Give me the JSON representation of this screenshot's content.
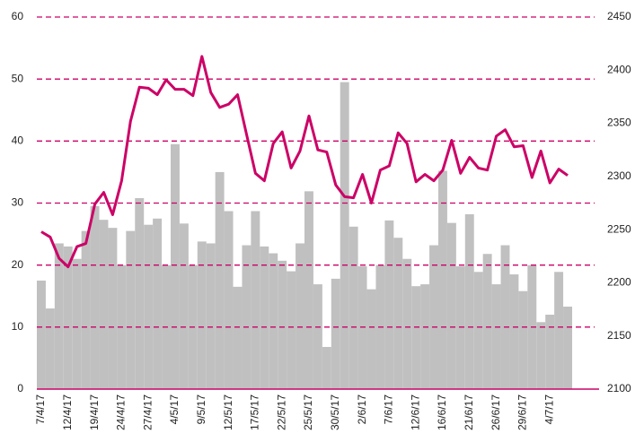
{
  "chart_data": {
    "type": "bar-line",
    "categories": [
      "7/4/17",
      null,
      null,
      "12/4/17",
      null,
      null,
      "19/4/17",
      null,
      null,
      "24/4/17",
      null,
      null,
      "27/4/17",
      null,
      null,
      "4/5/17",
      null,
      null,
      "9/5/17",
      null,
      null,
      "12/5/17",
      null,
      null,
      "17/5/17",
      null,
      null,
      "22/5/17",
      null,
      null,
      "25/5/17",
      null,
      null,
      "30/5/17",
      null,
      null,
      "2/6/17",
      null,
      null,
      "7/6/17",
      null,
      null,
      "12/6/17",
      null,
      null,
      "16/6/17",
      null,
      null,
      "21/6/17",
      null,
      null,
      "26/6/17",
      null,
      null,
      "29/6/17",
      null,
      null,
      "4/7/17",
      null,
      null
    ],
    "series": [
      {
        "type": "bar",
        "color": "#c0c0c0",
        "axis": "y",
        "values": [
          17.5,
          13,
          23.5,
          23,
          21,
          25.5,
          29.5,
          27.3,
          26,
          20,
          25.5,
          30.8,
          26.5,
          27.5,
          20,
          39.5,
          26.7,
          20,
          23.8,
          23.5,
          35,
          28.7,
          16.5,
          23.2,
          28.7,
          23,
          21.9,
          20.7,
          19,
          23.5,
          31.9,
          16.9,
          6.8,
          17.8,
          49.5,
          26.2,
          19.8,
          16.1,
          20,
          27.2,
          24.4,
          21,
          16.6,
          16.9,
          23.2,
          35.2,
          26.8,
          19.8,
          28.2,
          18.9,
          21.8,
          16.9,
          23.2,
          18.5,
          15.8,
          20,
          10.8,
          12,
          18.9,
          13.3
        ]
      },
      {
        "type": "line",
        "color": "#cc0066",
        "axis": "y2",
        "values": [
          2248,
          2243,
          2223,
          2215,
          2234,
          2237,
          2274,
          2285,
          2264,
          2296,
          2352,
          2384,
          2383,
          2377,
          2391,
          2382,
          2382,
          2376,
          2413,
          2379,
          2365,
          2368,
          2377,
          2340,
          2303,
          2296,
          2331,
          2342,
          2308,
          2324,
          2357,
          2325,
          2323,
          2292,
          2281,
          2280,
          2302,
          2275,
          2306,
          2310,
          2341,
          2331,
          2295,
          2302,
          2296,
          2306,
          2334,
          2303,
          2318,
          2308,
          2306,
          2338,
          2344,
          2328,
          2329,
          2299,
          2324,
          2294,
          2307,
          2301
        ]
      }
    ],
    "ylim": [
      0,
      60
    ],
    "yticks": [
      0,
      10,
      20,
      30,
      40,
      50,
      60
    ],
    "y2lim": [
      2100,
      2450
    ],
    "y2ticks": [
      2100,
      2150,
      2200,
      2250,
      2300,
      2350,
      2400,
      2450
    ],
    "grid": true,
    "grid_color": "#cc0066"
  }
}
